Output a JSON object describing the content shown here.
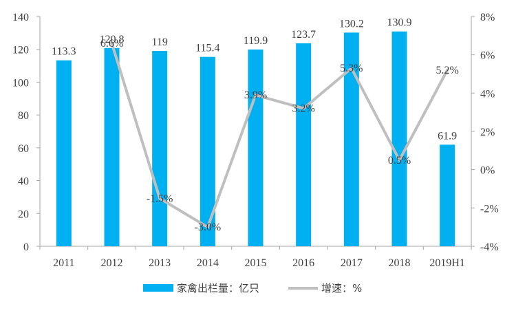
{
  "chart_data": {
    "type": "bar",
    "categories": [
      "2011",
      "2012",
      "2013",
      "2014",
      "2015",
      "2016",
      "2017",
      "2018",
      "2019H1"
    ],
    "series": [
      {
        "name": "家禽出栏量：亿只",
        "type": "bar",
        "axis": "left",
        "color": "#00b0f0",
        "values": [
          113.3,
          120.8,
          119,
          115.4,
          119.9,
          123.7,
          130.2,
          130.9,
          61.9
        ],
        "labels": [
          "113.3",
          "120.8",
          "119",
          "115.4",
          "119.9",
          "123.7",
          "130.2",
          "130.9",
          "61.9"
        ]
      },
      {
        "name": "增速：%",
        "type": "line",
        "axis": "right",
        "color": "#bfbfbf",
        "values": [
          null,
          6.6,
          -1.5,
          -3.0,
          3.9,
          3.2,
          5.3,
          0.5,
          5.2
        ],
        "labels": [
          "",
          "6.6%",
          "-1.5%",
          "-3.0%",
          "3.9%",
          "3.2%",
          "5.3%",
          "0.5%",
          "5.2%"
        ]
      }
    ],
    "y_left": {
      "range": [
        0,
        140
      ],
      "ticks": [
        0,
        20,
        40,
        60,
        80,
        100,
        120,
        140
      ],
      "tick_labels": [
        "0",
        "20",
        "40",
        "60",
        "80",
        "100",
        "120",
        "140"
      ]
    },
    "y_right": {
      "range": [
        -4,
        8
      ],
      "ticks": [
        -4,
        -2,
        0,
        2,
        4,
        6,
        8
      ],
      "tick_labels": [
        "-4%",
        "-2%",
        "0%",
        "2%",
        "4%",
        "6%",
        "8%"
      ]
    },
    "grid": false,
    "legend": "bottom"
  }
}
